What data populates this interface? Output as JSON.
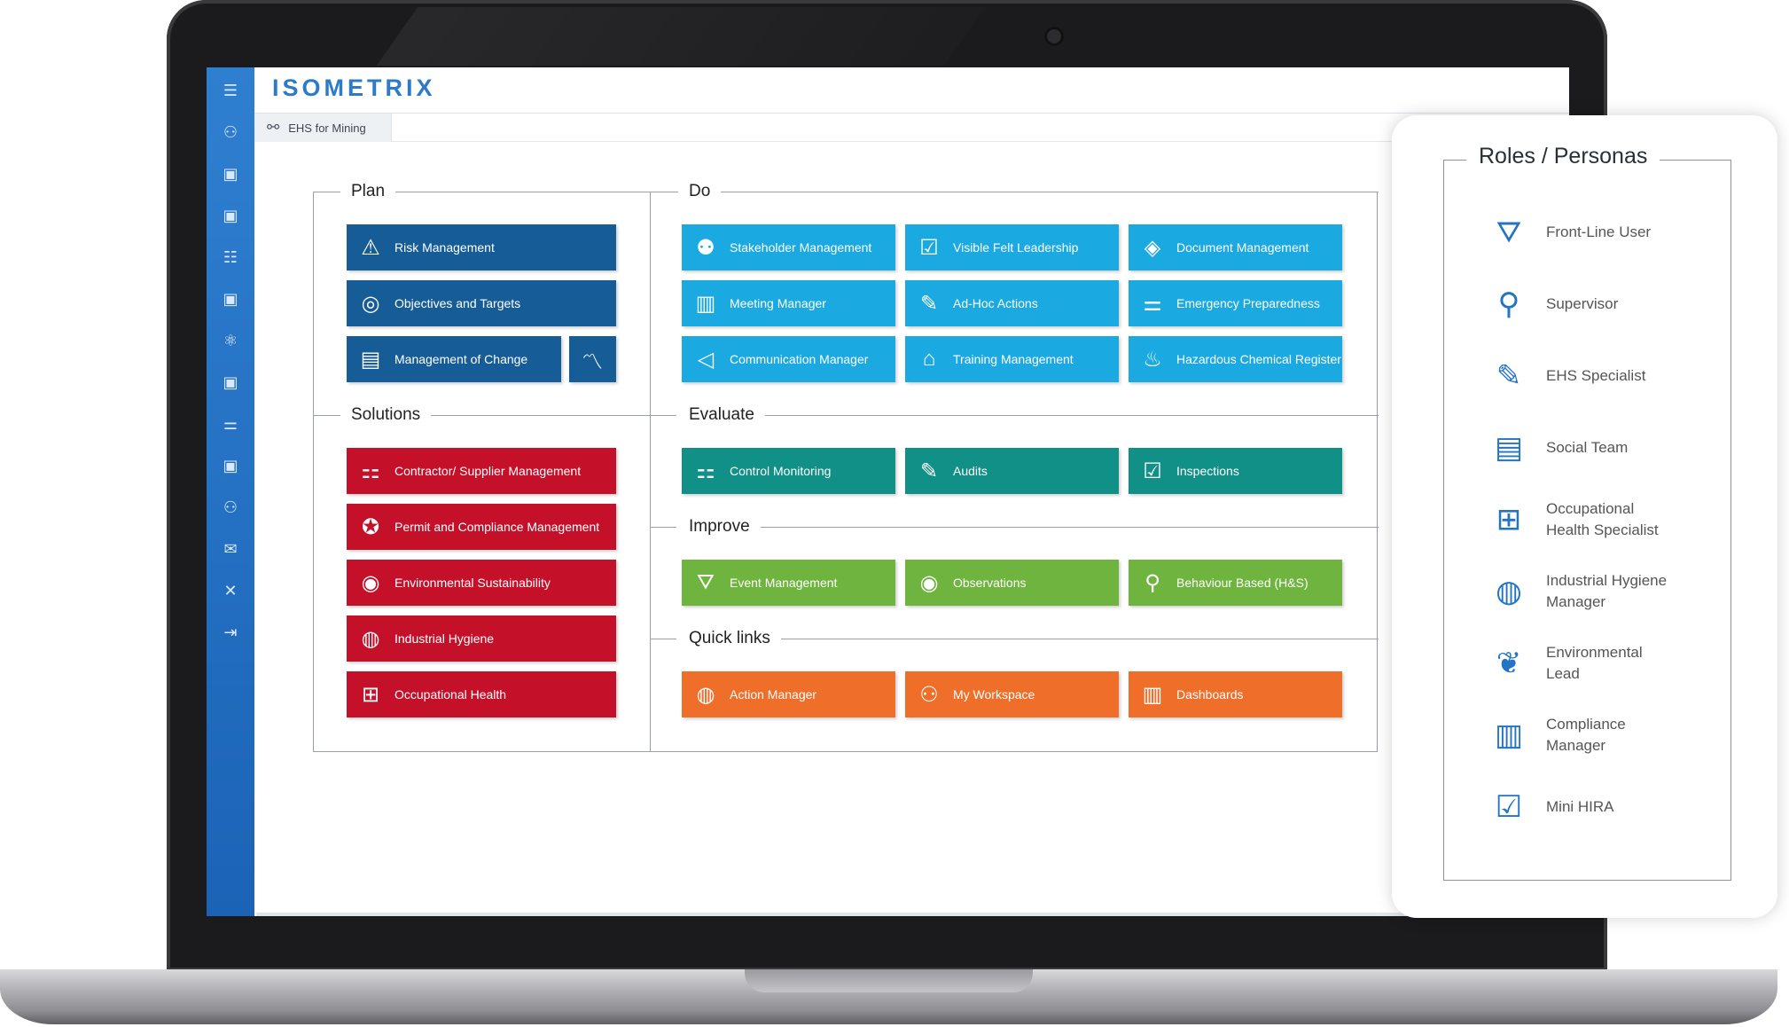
{
  "app": {
    "logo": "ISOMETRIX",
    "breadcrumb": "EHS for Mining"
  },
  "sections": {
    "plan": "Plan",
    "do": "Do",
    "solutions": "Solutions",
    "evaluate": "Evaluate",
    "improve": "Improve",
    "quick_links": "Quick links"
  },
  "tiles": {
    "plan": [
      "Risk Management",
      "Objectives and Targets",
      "Management of Change"
    ],
    "solutions": [
      "Contractor/ Supplier Management",
      "Permit and Compliance Management",
      "Environmental Sustainability",
      "Industrial Hygiene",
      "Occupational Health"
    ],
    "do": [
      "Stakeholder Management",
      "Visible Felt Leadership",
      "Document Management",
      "Meeting Manager",
      "Ad-Hoc Actions",
      "Emergency Preparedness",
      "Communication Manager",
      "Training Management",
      "Hazardous Chemical Register"
    ],
    "evaluate": [
      "Control Monitoring",
      "Audits",
      "Inspections"
    ],
    "improve": [
      "Event Management",
      "Observations",
      "Behaviour Based (H&S)"
    ],
    "quick_links": [
      "Action Manager",
      "My Workspace",
      "Dashboards"
    ]
  },
  "roles": {
    "title": "Roles / Personas",
    "items": [
      {
        "line1": "Front-Line User",
        "line2": "",
        "icon": "worker-icon"
      },
      {
        "line1": "Supervisor",
        "line2": "",
        "icon": "inspector-icon"
      },
      {
        "line1": "EHS Specialist",
        "line2": "",
        "icon": "form-edit-icon"
      },
      {
        "line1": "Social Team",
        "line2": "",
        "icon": "certificate-icon"
      },
      {
        "line1": "Occupational",
        "line2": "Health Specialist",
        "icon": "medical-kit-icon"
      },
      {
        "line1": "Industrial Hygiene",
        "line2": "Manager",
        "icon": "person-circle-icon"
      },
      {
        "line1": "Environmental",
        "line2": "Lead",
        "icon": "leaf-circle-icon"
      },
      {
        "line1": "Compliance",
        "line2": "Manager",
        "icon": "binders-check-icon"
      },
      {
        "line1": "Mini HIRA",
        "line2": "",
        "icon": "clipboard-check-icon"
      }
    ]
  },
  "colors": {
    "plan": "#165c96",
    "solutions": "#c5102a",
    "do": "#1ba9e1",
    "evaluate": "#119087",
    "improve": "#6fb43f",
    "quick_links": "#ef6e2a",
    "nav": "#1b63b6"
  }
}
